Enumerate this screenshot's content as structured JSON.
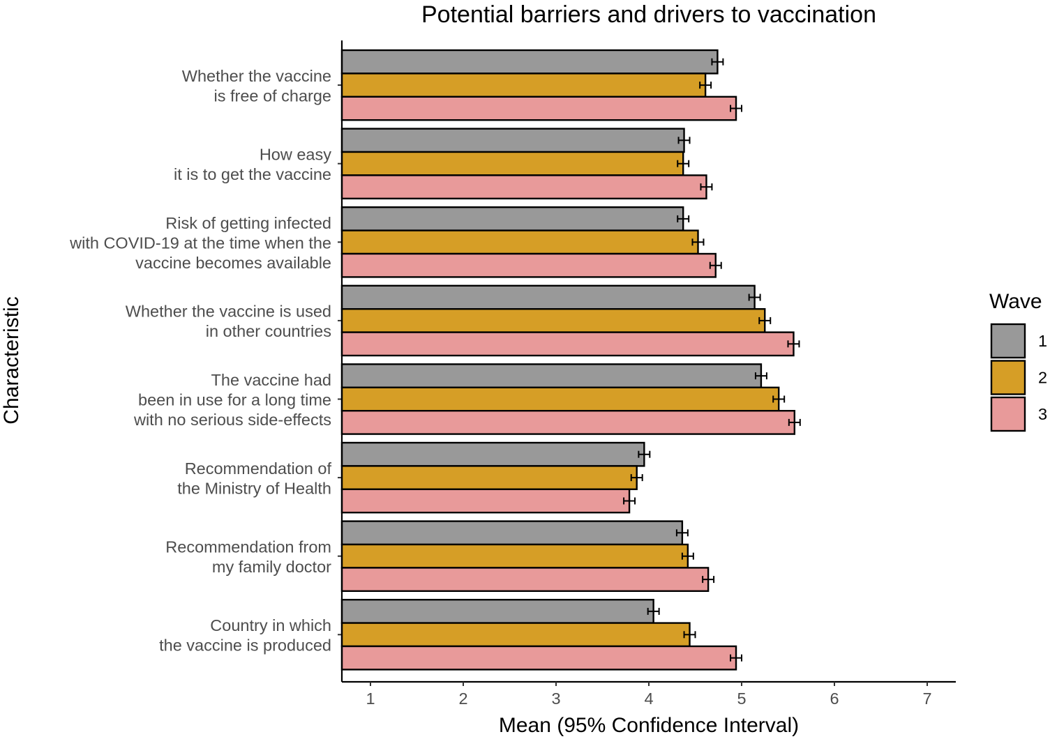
{
  "chart_data": {
    "type": "bar",
    "orientation": "horizontal",
    "title": "Potential barriers and drivers to vaccination",
    "xlabel": "Mean (95% Confidence Interval)",
    "ylabel": "Characteristic",
    "xlim": [
      0.7,
      7.3
    ],
    "xticks": [
      "1",
      "2",
      "3",
      "4",
      "5",
      "6",
      "7"
    ],
    "grid": false,
    "legend": {
      "title": "Wave",
      "position": "right"
    },
    "categories": [
      [
        "Whether the vaccine",
        "is free of charge"
      ],
      [
        "How easy",
        "it is  to get the vaccine"
      ],
      [
        "Risk of getting  infected",
        "with COVID-19 at the time when the",
        "vaccine becomes available"
      ],
      [
        "Whether the vaccine is used",
        "in other countries"
      ],
      [
        "The vaccine had",
        "been in use for a long  time",
        "with no serious side-effects"
      ],
      [
        "Recommendation of",
        "the Ministry of Health"
      ],
      [
        "Recommendation from",
        "my family doctor"
      ],
      [
        "Country in which",
        "the vaccine is produced"
      ]
    ],
    "series": [
      {
        "name": "1",
        "color": "#999999",
        "values": [
          4.74,
          4.38,
          4.37,
          5.14,
          5.21,
          3.95,
          4.36,
          4.05
        ],
        "ci": [
          0.06,
          0.06,
          0.06,
          0.06,
          0.06,
          0.06,
          0.06,
          0.06
        ]
      },
      {
        "name": "2",
        "color": "#D69E26",
        "values": [
          4.61,
          4.37,
          4.53,
          5.25,
          5.4,
          3.87,
          4.42,
          4.44
        ],
        "ci": [
          0.06,
          0.06,
          0.06,
          0.06,
          0.06,
          0.06,
          0.06,
          0.06
        ]
      },
      {
        "name": "3",
        "color": "#E89A9A",
        "values": [
          4.94,
          4.62,
          4.72,
          5.56,
          5.57,
          3.79,
          4.64,
          4.94
        ],
        "ci": [
          0.06,
          0.06,
          0.06,
          0.06,
          0.06,
          0.06,
          0.06,
          0.06
        ]
      }
    ]
  }
}
